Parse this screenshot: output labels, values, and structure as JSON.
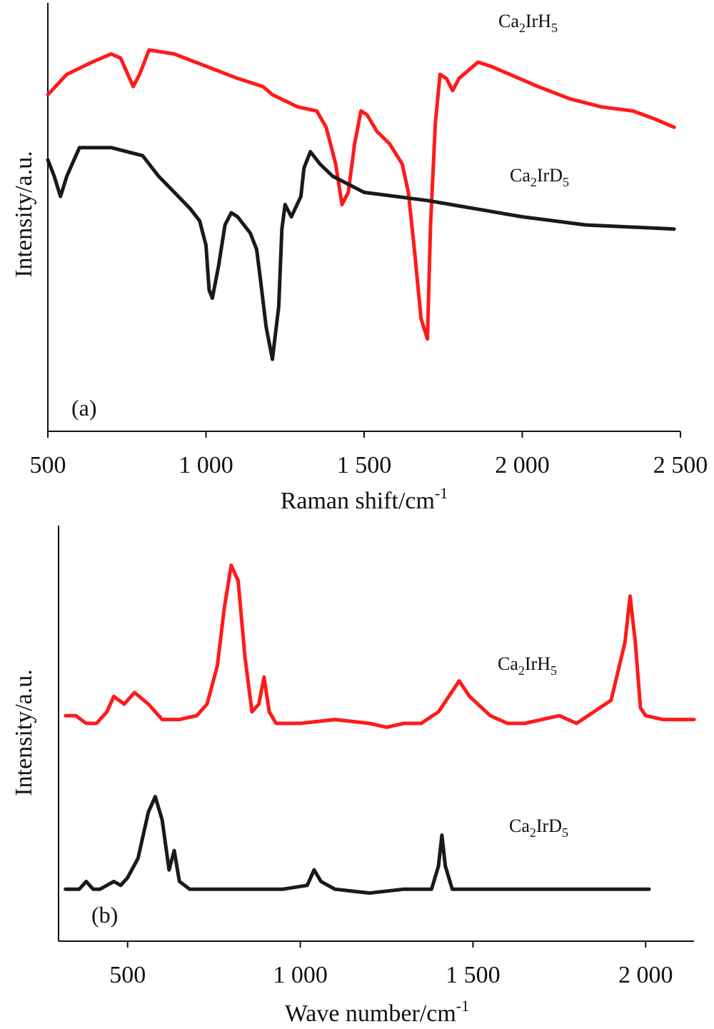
{
  "chart_data": [
    {
      "type": "line",
      "panel_label": "(a)",
      "xlabel": "Raman shift/cm",
      "xlabel_sup": "-1",
      "ylabel": "Intensity/a.u.",
      "xlim": [
        500,
        2500
      ],
      "ylim": [
        0,
        100
      ],
      "x_ticks": [
        500,
        1000,
        1500,
        2000,
        2500
      ],
      "x_tick_labels": [
        "500",
        "1 000",
        "1 500",
        "2 000",
        "2 500"
      ],
      "y_ticks_shown": false,
      "series": [
        {
          "name": "Ca2IrH5",
          "label": {
            "base": "Ca",
            "sub1": "2",
            "mid": "IrH",
            "sub2": "5"
          },
          "color": "#ff1a1a",
          "x": [
            500,
            560,
            640,
            700,
            730,
            770,
            790,
            820,
            900,
            1000,
            1100,
            1180,
            1210,
            1290,
            1350,
            1380,
            1410,
            1430,
            1450,
            1470,
            1490,
            1510,
            1540,
            1580,
            1620,
            1640,
            1660,
            1680,
            1700,
            1710,
            1725,
            1740,
            1760,
            1780,
            1800,
            1860,
            1900,
            1960,
            2050,
            2150,
            2250,
            2350,
            2420,
            2480
          ],
          "y": [
            82,
            87,
            90,
            92,
            91,
            84,
            87,
            93,
            92,
            89,
            86,
            84,
            82,
            79,
            78,
            74,
            65,
            55,
            58,
            70,
            78,
            77,
            73,
            70,
            65,
            58,
            43,
            27,
            22,
            50,
            75,
            87,
            86,
            83,
            86,
            90,
            89,
            87,
            84,
            81,
            79,
            78,
            76,
            74
          ]
        },
        {
          "name": "Ca2IrD5",
          "label": {
            "base": "Ca",
            "sub1": "2",
            "mid": "IrD",
            "sub2": "5"
          },
          "color": "#1a1a1a",
          "x": [
            500,
            520,
            540,
            560,
            600,
            700,
            800,
            850,
            900,
            950,
            980,
            1000,
            1010,
            1020,
            1040,
            1060,
            1080,
            1100,
            1140,
            1160,
            1170,
            1190,
            1210,
            1230,
            1240,
            1250,
            1270,
            1300,
            1310,
            1330,
            1360,
            1400,
            1500,
            1700,
            1850,
            2000,
            2200,
            2480
          ],
          "y": [
            66,
            62,
            57,
            62,
            69,
            69,
            67,
            62,
            58,
            54,
            51,
            45,
            34,
            32,
            40,
            50,
            53,
            52,
            48,
            44,
            38,
            25,
            17,
            30,
            49,
            55,
            52,
            57,
            64,
            68,
            65,
            62,
            58,
            56,
            54,
            52,
            50,
            49
          ]
        }
      ]
    },
    {
      "type": "line",
      "panel_label": "(b)",
      "xlabel": "Wave number/cm",
      "xlabel_sup": "-1",
      "ylabel": "Intensity/a.u.",
      "xlim": [
        300,
        2140
      ],
      "ylim": [
        0,
        100
      ],
      "x_ticks": [
        500,
        1000,
        1500,
        2000
      ],
      "x_tick_labels": [
        "500",
        "1 000",
        "1 500",
        "2 000"
      ],
      "y_ticks_shown": false,
      "series": [
        {
          "name": "Ca2IrH5",
          "label": {
            "base": "Ca",
            "sub1": "2",
            "mid": "IrH",
            "sub2": "5"
          },
          "color": "#ff1a1a",
          "x": [
            320,
            350,
            380,
            410,
            440,
            460,
            490,
            520,
            560,
            600,
            650,
            700,
            730,
            760,
            780,
            800,
            820,
            840,
            860,
            880,
            895,
            910,
            930,
            1000,
            1100,
            1200,
            1250,
            1300,
            1350,
            1400,
            1430,
            1460,
            1490,
            1550,
            1600,
            1650,
            1700,
            1750,
            1800,
            1850,
            1900,
            1940,
            1955,
            1970,
            1985,
            2000,
            2050,
            2100,
            2140
          ],
          "y": [
            57,
            57,
            55,
            55,
            58,
            62,
            60,
            63,
            60,
            56,
            56,
            57,
            60,
            70,
            85,
            96,
            92,
            72,
            58,
            60,
            67,
            58,
            55,
            55,
            56,
            55,
            54,
            55,
            55,
            58,
            62,
            66,
            62,
            57,
            55,
            55,
            56,
            57,
            55,
            58,
            61,
            76,
            88,
            76,
            59,
            57,
            56,
            56,
            56
          ]
        },
        {
          "name": "Ca2IrD5",
          "label": {
            "base": "Ca",
            "sub1": "2",
            "mid": "IrD",
            "sub2": "5"
          },
          "color": "#1a1a1a",
          "x": [
            320,
            360,
            380,
            400,
            420,
            460,
            480,
            500,
            530,
            560,
            580,
            600,
            620,
            635,
            650,
            680,
            750,
            850,
            950,
            1020,
            1040,
            1060,
            1100,
            1200,
            1300,
            1380,
            1400,
            1410,
            1420,
            1440,
            1500,
            1600,
            1700,
            1800,
            1900,
            2010
          ],
          "y": [
            12,
            12,
            14,
            12,
            12,
            14,
            13,
            15,
            20,
            32,
            36,
            30,
            17,
            22,
            14,
            12,
            12,
            12,
            12,
            13,
            17,
            14,
            12,
            11,
            12,
            12,
            18,
            26,
            18,
            12,
            12,
            12,
            12,
            12,
            12,
            12
          ]
        }
      ]
    }
  ]
}
